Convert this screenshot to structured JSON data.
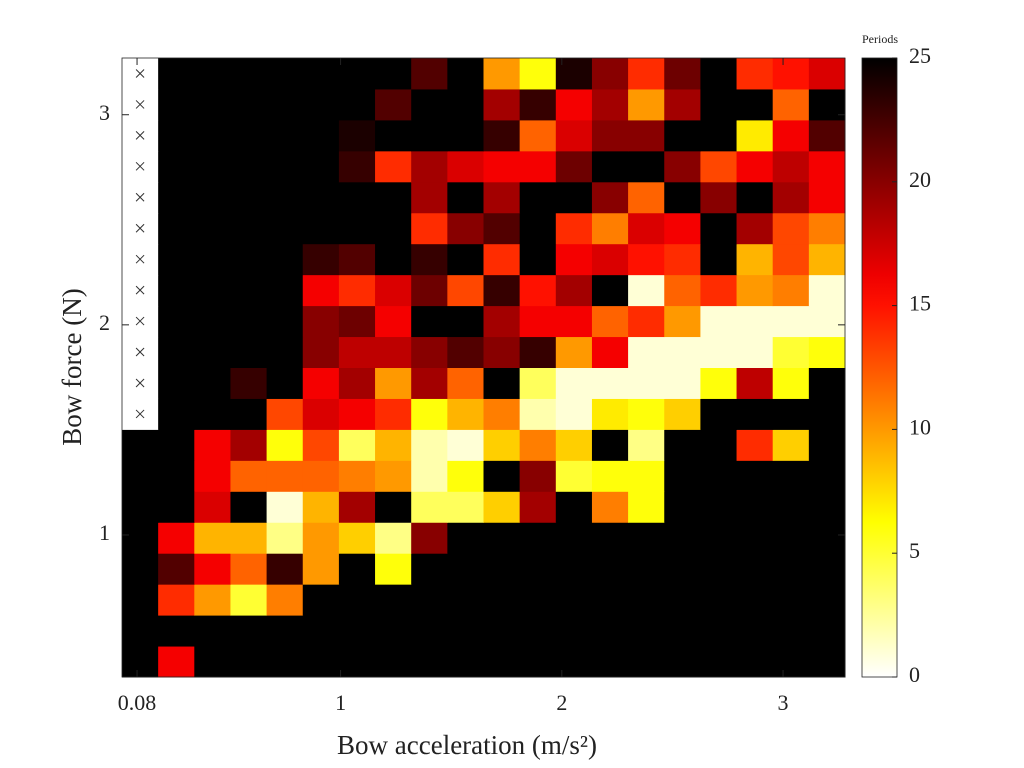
{
  "chart_data": {
    "type": "heatmap",
    "x_label": "Bow acceleration (m/s²)",
    "y_label": "Bow force (N)",
    "xlim": [
      0.012,
      3.28
    ],
    "ylim": [
      0.324,
      3.27
    ],
    "xticks": [
      0.08,
      1,
      2,
      3
    ],
    "yticks": [
      1,
      2,
      3
    ],
    "colormap": "hot",
    "reverse_colormap": true,
    "colorbar_label": "Periods",
    "clim": [
      0,
      25
    ],
    "colorbar_ticks": [
      0,
      5,
      10,
      15,
      20,
      25
    ],
    "values": [
      [
        25,
        16,
        25,
        25,
        25,
        25,
        25,
        25,
        25,
        25,
        25,
        25,
        25,
        25,
        25,
        25,
        25,
        25,
        25,
        25
      ],
      [
        25,
        25,
        25,
        25,
        25,
        25,
        25,
        25,
        25,
        25,
        25,
        25,
        25,
        25,
        25,
        25,
        25,
        25,
        25,
        25
      ],
      [
        25,
        14,
        10,
        5,
        11,
        25,
        25,
        25,
        25,
        25,
        25,
        25,
        25,
        25,
        25,
        25,
        25,
        25,
        25,
        25
      ],
      [
        25,
        22,
        16,
        12,
        23,
        10,
        25,
        6,
        25,
        25,
        25,
        25,
        25,
        25,
        25,
        25,
        25,
        25,
        25,
        25
      ],
      [
        25,
        16,
        9,
        9,
        3,
        10,
        8,
        3,
        20,
        25,
        25,
        25,
        25,
        25,
        25,
        25,
        25,
        25,
        25,
        25
      ],
      [
        25,
        25,
        17,
        25,
        1,
        9,
        19,
        25,
        4,
        4,
        8,
        19,
        25,
        11,
        6,
        25,
        25,
        25,
        25,
        25
      ],
      [
        25,
        25,
        16,
        12,
        12,
        12,
        11,
        10,
        2,
        6,
        25,
        20,
        5,
        6,
        6,
        25,
        25,
        25,
        25,
        25
      ],
      [
        25,
        25,
        16,
        19,
        6,
        13,
        4,
        9,
        2,
        1,
        8,
        11,
        8,
        25,
        3,
        25,
        25,
        14,
        8,
        25
      ],
      [
        null,
        25,
        25,
        25,
        13,
        17,
        16,
        14,
        6,
        9,
        11,
        2,
        1,
        7,
        6,
        8,
        25,
        25,
        25,
        25
      ],
      [
        null,
        25,
        25,
        23,
        25,
        16,
        19,
        10,
        19,
        12,
        25,
        4,
        1,
        1,
        1,
        1,
        6,
        18,
        6,
        25
      ],
      [
        null,
        25,
        25,
        25,
        25,
        20,
        18,
        18,
        20,
        22,
        20,
        23,
        10,
        16,
        1,
        1,
        1,
        1,
        5,
        6
      ],
      [
        null,
        25,
        25,
        25,
        25,
        20,
        21,
        16,
        25,
        25,
        19,
        16,
        16,
        12,
        14,
        10,
        1,
        1,
        1,
        1
      ],
      [
        null,
        25,
        25,
        25,
        25,
        16,
        14,
        17,
        21,
        13,
        23,
        15,
        19,
        25,
        1,
        12,
        14,
        10,
        11,
        1
      ],
      [
        null,
        25,
        25,
        25,
        25,
        23,
        22,
        25,
        23,
        25,
        14,
        25,
        16,
        17,
        15,
        14,
        25,
        9,
        13,
        9
      ],
      [
        null,
        25,
        25,
        25,
        25,
        25,
        25,
        25,
        14,
        20,
        22,
        25,
        14,
        11,
        17,
        16,
        25,
        19,
        13,
        11
      ],
      [
        null,
        25,
        25,
        25,
        25,
        25,
        25,
        25,
        19,
        25,
        19,
        25,
        25,
        20,
        12,
        25,
        20,
        25,
        19,
        16
      ],
      [
        null,
        25,
        25,
        25,
        25,
        25,
        23,
        14,
        19,
        17,
        16,
        16,
        21,
        25,
        25,
        20,
        13,
        16,
        18,
        16
      ],
      [
        null,
        25,
        25,
        25,
        25,
        25,
        24,
        25,
        25,
        25,
        23,
        12,
        17,
        20,
        20,
        25,
        25,
        7,
        16,
        22
      ],
      [
        null,
        25,
        25,
        25,
        25,
        25,
        25,
        22,
        25,
        25,
        19,
        23,
        16,
        19,
        10,
        19,
        25,
        25,
        12,
        25
      ],
      [
        null,
        25,
        25,
        25,
        25,
        25,
        25,
        25,
        22,
        25,
        10,
        6,
        24,
        20,
        14,
        21,
        25,
        14,
        15,
        17
      ]
    ]
  }
}
